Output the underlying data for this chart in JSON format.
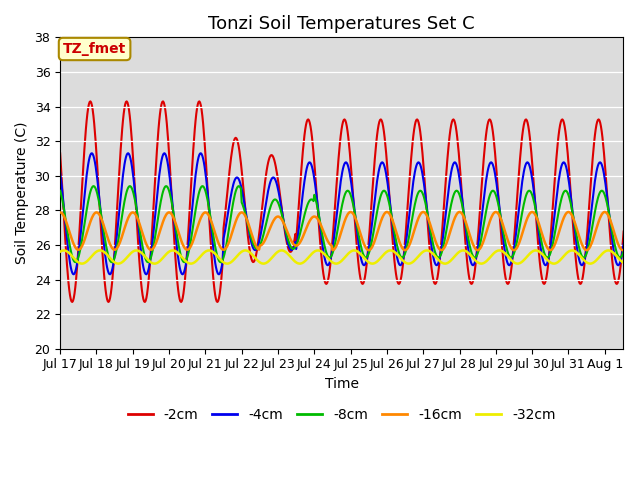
{
  "title": "Tonzi Soil Temperatures Set C",
  "xlabel": "Time",
  "ylabel": "Soil Temperature (C)",
  "ylim": [
    20,
    38
  ],
  "n_days": 15.5,
  "xtick_labels": [
    "Jul 17",
    "Jul 18",
    "Jul 19",
    "Jul 20",
    "Jul 21",
    "Jul 22",
    "Jul 23",
    "Jul 24",
    "Jul 25",
    "Jul 26",
    "Jul 27",
    "Jul 28",
    "Jul 29",
    "Jul 30",
    "Jul 31",
    "Aug 1"
  ],
  "annotation_label": "TZ_fmet",
  "annotation_color": "#cc0000",
  "annotation_bg": "#ffffcc",
  "annotation_border": "#aa8800",
  "bg_color": "#dcdcdc",
  "lines": {
    "-2cm": {
      "color": "#dd0000",
      "lw": 1.5,
      "ls": "-"
    },
    "-4cm": {
      "color": "#0000ee",
      "lw": 1.5,
      "ls": "-"
    },
    "-8cm": {
      "color": "#00bb00",
      "lw": 1.5,
      "ls": "-"
    },
    "-16cm": {
      "color": "#ff8800",
      "lw": 1.8,
      "ls": "-"
    },
    "-32cm": {
      "color": "#eeee00",
      "lw": 1.8,
      "ls": "-"
    }
  },
  "legend_labels": [
    "-2cm",
    "-4cm",
    "-8cm",
    "-16cm",
    "-32cm"
  ],
  "title_fontsize": 13,
  "axis_label_fontsize": 10,
  "tick_fontsize": 9
}
